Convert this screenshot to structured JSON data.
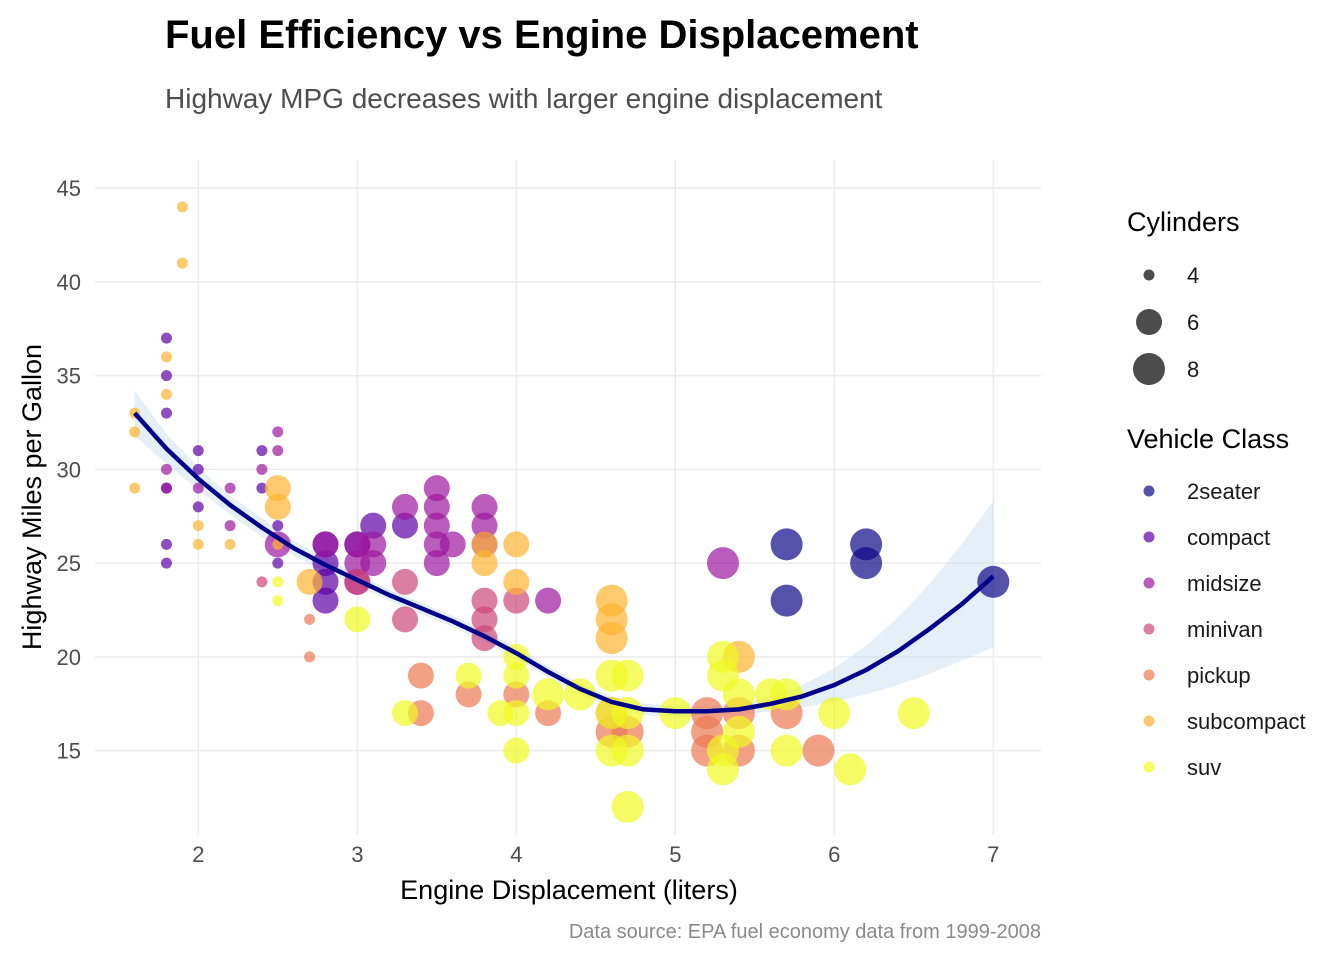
{
  "chart_data": {
    "type": "scatter",
    "title": "Fuel Efficiency vs Engine Displacement",
    "subtitle": "Highway MPG decreases with larger engine displacement",
    "xlabel": "Engine Displacement (liters)",
    "ylabel": "Highway Miles per Gallon",
    "caption": "Data source: EPA fuel economy data from 1999-2008",
    "xlim": [
      1.35,
      7.3
    ],
    "ylim": [
      10.5,
      46.5
    ],
    "xticks": [
      2,
      3,
      4,
      5,
      6,
      7
    ],
    "yticks": [
      15,
      20,
      25,
      30,
      35,
      40,
      45
    ],
    "grid": true,
    "size_legend": {
      "title": "Cylinders",
      "entries": [
        4,
        6,
        8
      ]
    },
    "color_legend": {
      "title": "Vehicle Class",
      "entries": [
        "2seater",
        "compact",
        "midsize",
        "minivan",
        "pickup",
        "subcompact",
        "suv"
      ]
    },
    "class_colors": {
      "2seater": "#0d0887",
      "compact": "#5c01a6",
      "midsize": "#9c179e",
      "minivan": "#cc4778",
      "pickup": "#ed7953",
      "subcompact": "#fdb42f",
      "suv": "#f0f921"
    },
    "point_opacity": 0.7,
    "points": [
      {
        "x": 5.7,
        "y": 26,
        "cyl": 8,
        "cls": "2seater"
      },
      {
        "x": 5.7,
        "y": 23,
        "cyl": 8,
        "cls": "2seater"
      },
      {
        "x": 6.2,
        "y": 26,
        "cyl": 8,
        "cls": "2seater"
      },
      {
        "x": 6.2,
        "y": 25,
        "cyl": 8,
        "cls": "2seater"
      },
      {
        "x": 7.0,
        "y": 24,
        "cyl": 8,
        "cls": "2seater"
      },
      {
        "x": 1.8,
        "y": 37,
        "cyl": 4,
        "cls": "compact"
      },
      {
        "x": 1.8,
        "y": 35,
        "cyl": 4,
        "cls": "compact"
      },
      {
        "x": 1.8,
        "y": 33,
        "cyl": 4,
        "cls": "compact"
      },
      {
        "x": 1.8,
        "y": 29,
        "cyl": 4,
        "cls": "compact"
      },
      {
        "x": 1.8,
        "y": 26,
        "cyl": 4,
        "cls": "compact"
      },
      {
        "x": 1.8,
        "y": 25,
        "cyl": 4,
        "cls": "compact"
      },
      {
        "x": 2.0,
        "y": 31,
        "cyl": 4,
        "cls": "compact"
      },
      {
        "x": 2.0,
        "y": 30,
        "cyl": 4,
        "cls": "compact"
      },
      {
        "x": 2.0,
        "y": 28,
        "cyl": 4,
        "cls": "compact"
      },
      {
        "x": 2.4,
        "y": 31,
        "cyl": 4,
        "cls": "compact"
      },
      {
        "x": 2.4,
        "y": 29,
        "cyl": 4,
        "cls": "compact"
      },
      {
        "x": 2.5,
        "y": 27,
        "cyl": 4,
        "cls": "compact"
      },
      {
        "x": 2.5,
        "y": 25,
        "cyl": 4,
        "cls": "compact"
      },
      {
        "x": 2.8,
        "y": 26,
        "cyl": 6,
        "cls": "compact"
      },
      {
        "x": 2.8,
        "y": 25,
        "cyl": 6,
        "cls": "compact"
      },
      {
        "x": 2.8,
        "y": 24,
        "cyl": 6,
        "cls": "compact"
      },
      {
        "x": 2.8,
        "y": 23,
        "cyl": 6,
        "cls": "compact"
      },
      {
        "x": 3.0,
        "y": 26,
        "cyl": 6,
        "cls": "compact"
      },
      {
        "x": 3.1,
        "y": 27,
        "cyl": 6,
        "cls": "compact"
      },
      {
        "x": 3.3,
        "y": 27,
        "cyl": 6,
        "cls": "compact"
      },
      {
        "x": 1.8,
        "y": 30,
        "cyl": 4,
        "cls": "midsize"
      },
      {
        "x": 1.8,
        "y": 29,
        "cyl": 4,
        "cls": "midsize"
      },
      {
        "x": 2.0,
        "y": 29,
        "cyl": 4,
        "cls": "midsize"
      },
      {
        "x": 2.2,
        "y": 29,
        "cyl": 4,
        "cls": "midsize"
      },
      {
        "x": 2.2,
        "y": 27,
        "cyl": 4,
        "cls": "midsize"
      },
      {
        "x": 2.4,
        "y": 30,
        "cyl": 4,
        "cls": "midsize"
      },
      {
        "x": 2.5,
        "y": 32,
        "cyl": 4,
        "cls": "midsize"
      },
      {
        "x": 2.5,
        "y": 31,
        "cyl": 4,
        "cls": "midsize"
      },
      {
        "x": 2.5,
        "y": 26,
        "cyl": 6,
        "cls": "midsize"
      },
      {
        "x": 2.8,
        "y": 26,
        "cyl": 6,
        "cls": "midsize"
      },
      {
        "x": 3.0,
        "y": 26,
        "cyl": 6,
        "cls": "midsize"
      },
      {
        "x": 3.0,
        "y": 25,
        "cyl": 6,
        "cls": "midsize"
      },
      {
        "x": 3.0,
        "y": 24,
        "cyl": 6,
        "cls": "midsize"
      },
      {
        "x": 3.1,
        "y": 26,
        "cyl": 6,
        "cls": "midsize"
      },
      {
        "x": 3.1,
        "y": 25,
        "cyl": 6,
        "cls": "midsize"
      },
      {
        "x": 3.3,
        "y": 28,
        "cyl": 6,
        "cls": "midsize"
      },
      {
        "x": 3.5,
        "y": 29,
        "cyl": 6,
        "cls": "midsize"
      },
      {
        "x": 3.5,
        "y": 28,
        "cyl": 6,
        "cls": "midsize"
      },
      {
        "x": 3.5,
        "y": 27,
        "cyl": 6,
        "cls": "midsize"
      },
      {
        "x": 3.5,
        "y": 26,
        "cyl": 6,
        "cls": "midsize"
      },
      {
        "x": 3.5,
        "y": 25,
        "cyl": 6,
        "cls": "midsize"
      },
      {
        "x": 3.6,
        "y": 26,
        "cyl": 6,
        "cls": "midsize"
      },
      {
        "x": 3.8,
        "y": 28,
        "cyl": 6,
        "cls": "midsize"
      },
      {
        "x": 3.8,
        "y": 27,
        "cyl": 6,
        "cls": "midsize"
      },
      {
        "x": 3.8,
        "y": 26,
        "cyl": 6,
        "cls": "midsize"
      },
      {
        "x": 4.2,
        "y": 23,
        "cyl": 6,
        "cls": "midsize"
      },
      {
        "x": 5.3,
        "y": 25,
        "cyl": 8,
        "cls": "midsize"
      },
      {
        "x": 2.4,
        "y": 24,
        "cyl": 4,
        "cls": "minivan"
      },
      {
        "x": 3.0,
        "y": 24,
        "cyl": 6,
        "cls": "minivan"
      },
      {
        "x": 3.3,
        "y": 24,
        "cyl": 6,
        "cls": "minivan"
      },
      {
        "x": 3.3,
        "y": 22,
        "cyl": 6,
        "cls": "minivan"
      },
      {
        "x": 3.8,
        "y": 23,
        "cyl": 6,
        "cls": "minivan"
      },
      {
        "x": 3.8,
        "y": 22,
        "cyl": 6,
        "cls": "minivan"
      },
      {
        "x": 3.8,
        "y": 21,
        "cyl": 6,
        "cls": "minivan"
      },
      {
        "x": 4.0,
        "y": 23,
        "cyl": 6,
        "cls": "minivan"
      },
      {
        "x": 2.7,
        "y": 22,
        "cyl": 4,
        "cls": "pickup"
      },
      {
        "x": 2.7,
        "y": 20,
        "cyl": 4,
        "cls": "pickup"
      },
      {
        "x": 3.4,
        "y": 19,
        "cyl": 6,
        "cls": "pickup"
      },
      {
        "x": 3.4,
        "y": 17,
        "cyl": 6,
        "cls": "pickup"
      },
      {
        "x": 3.7,
        "y": 18,
        "cyl": 6,
        "cls": "pickup"
      },
      {
        "x": 4.0,
        "y": 18,
        "cyl": 6,
        "cls": "pickup"
      },
      {
        "x": 4.2,
        "y": 17,
        "cyl": 6,
        "cls": "pickup"
      },
      {
        "x": 4.6,
        "y": 17,
        "cyl": 8,
        "cls": "pickup"
      },
      {
        "x": 4.6,
        "y": 16,
        "cyl": 8,
        "cls": "pickup"
      },
      {
        "x": 4.7,
        "y": 16,
        "cyl": 8,
        "cls": "pickup"
      },
      {
        "x": 5.2,
        "y": 17,
        "cyl": 8,
        "cls": "pickup"
      },
      {
        "x": 5.2,
        "y": 16,
        "cyl": 8,
        "cls": "pickup"
      },
      {
        "x": 5.2,
        "y": 15,
        "cyl": 8,
        "cls": "pickup"
      },
      {
        "x": 5.4,
        "y": 17,
        "cyl": 8,
        "cls": "pickup"
      },
      {
        "x": 5.4,
        "y": 15,
        "cyl": 8,
        "cls": "pickup"
      },
      {
        "x": 5.7,
        "y": 17,
        "cyl": 8,
        "cls": "pickup"
      },
      {
        "x": 5.9,
        "y": 15,
        "cyl": 8,
        "cls": "pickup"
      },
      {
        "x": 1.6,
        "y": 33,
        "cyl": 4,
        "cls": "subcompact"
      },
      {
        "x": 1.6,
        "y": 32,
        "cyl": 4,
        "cls": "subcompact"
      },
      {
        "x": 1.6,
        "y": 29,
        "cyl": 4,
        "cls": "subcompact"
      },
      {
        "x": 1.8,
        "y": 36,
        "cyl": 4,
        "cls": "subcompact"
      },
      {
        "x": 1.8,
        "y": 34,
        "cyl": 4,
        "cls": "subcompact"
      },
      {
        "x": 1.9,
        "y": 44,
        "cyl": 4,
        "cls": "subcompact"
      },
      {
        "x": 1.9,
        "y": 41,
        "cyl": 4,
        "cls": "subcompact"
      },
      {
        "x": 2.0,
        "y": 27,
        "cyl": 4,
        "cls": "subcompact"
      },
      {
        "x": 2.0,
        "y": 26,
        "cyl": 4,
        "cls": "subcompact"
      },
      {
        "x": 2.2,
        "y": 26,
        "cyl": 4,
        "cls": "subcompact"
      },
      {
        "x": 2.5,
        "y": 29,
        "cyl": 6,
        "cls": "subcompact"
      },
      {
        "x": 2.5,
        "y": 28,
        "cyl": 6,
        "cls": "subcompact"
      },
      {
        "x": 2.5,
        "y": 26,
        "cyl": 4,
        "cls": "subcompact"
      },
      {
        "x": 2.7,
        "y": 24,
        "cyl": 6,
        "cls": "subcompact"
      },
      {
        "x": 3.8,
        "y": 26,
        "cyl": 6,
        "cls": "subcompact"
      },
      {
        "x": 3.8,
        "y": 25,
        "cyl": 6,
        "cls": "subcompact"
      },
      {
        "x": 4.0,
        "y": 26,
        "cyl": 6,
        "cls": "subcompact"
      },
      {
        "x": 4.0,
        "y": 24,
        "cyl": 6,
        "cls": "subcompact"
      },
      {
        "x": 4.6,
        "y": 23,
        "cyl": 8,
        "cls": "subcompact"
      },
      {
        "x": 4.6,
        "y": 22,
        "cyl": 8,
        "cls": "subcompact"
      },
      {
        "x": 4.6,
        "y": 21,
        "cyl": 8,
        "cls": "subcompact"
      },
      {
        "x": 5.4,
        "y": 20,
        "cyl": 8,
        "cls": "subcompact"
      },
      {
        "x": 2.5,
        "y": 24,
        "cyl": 4,
        "cls": "suv"
      },
      {
        "x": 2.5,
        "y": 23,
        "cyl": 4,
        "cls": "suv"
      },
      {
        "x": 3.0,
        "y": 22,
        "cyl": 6,
        "cls": "suv"
      },
      {
        "x": 3.3,
        "y": 17,
        "cyl": 6,
        "cls": "suv"
      },
      {
        "x": 3.7,
        "y": 19,
        "cyl": 6,
        "cls": "suv"
      },
      {
        "x": 3.9,
        "y": 17,
        "cyl": 6,
        "cls": "suv"
      },
      {
        "x": 4.0,
        "y": 20,
        "cyl": 6,
        "cls": "suv"
      },
      {
        "x": 4.0,
        "y": 19,
        "cyl": 6,
        "cls": "suv"
      },
      {
        "x": 4.0,
        "y": 17,
        "cyl": 6,
        "cls": "suv"
      },
      {
        "x": 4.0,
        "y": 15,
        "cyl": 6,
        "cls": "suv"
      },
      {
        "x": 4.2,
        "y": 18,
        "cyl": 8,
        "cls": "suv"
      },
      {
        "x": 4.4,
        "y": 18,
        "cyl": 8,
        "cls": "suv"
      },
      {
        "x": 4.6,
        "y": 19,
        "cyl": 8,
        "cls": "suv"
      },
      {
        "x": 4.6,
        "y": 17,
        "cyl": 8,
        "cls": "suv"
      },
      {
        "x": 4.6,
        "y": 15,
        "cyl": 8,
        "cls": "suv"
      },
      {
        "x": 4.7,
        "y": 19,
        "cyl": 8,
        "cls": "suv"
      },
      {
        "x": 4.7,
        "y": 17,
        "cyl": 8,
        "cls": "suv"
      },
      {
        "x": 4.7,
        "y": 15,
        "cyl": 8,
        "cls": "suv"
      },
      {
        "x": 4.7,
        "y": 12,
        "cyl": 8,
        "cls": "suv"
      },
      {
        "x": 5.0,
        "y": 17,
        "cyl": 8,
        "cls": "suv"
      },
      {
        "x": 5.3,
        "y": 20,
        "cyl": 8,
        "cls": "suv"
      },
      {
        "x": 5.3,
        "y": 19,
        "cyl": 8,
        "cls": "suv"
      },
      {
        "x": 5.3,
        "y": 15,
        "cyl": 8,
        "cls": "suv"
      },
      {
        "x": 5.3,
        "y": 14,
        "cyl": 8,
        "cls": "suv"
      },
      {
        "x": 5.4,
        "y": 18,
        "cyl": 8,
        "cls": "suv"
      },
      {
        "x": 5.4,
        "y": 16,
        "cyl": 8,
        "cls": "suv"
      },
      {
        "x": 5.6,
        "y": 18,
        "cyl": 8,
        "cls": "suv"
      },
      {
        "x": 5.7,
        "y": 18,
        "cyl": 8,
        "cls": "suv"
      },
      {
        "x": 5.7,
        "y": 15,
        "cyl": 8,
        "cls": "suv"
      },
      {
        "x": 6.0,
        "y": 17,
        "cyl": 8,
        "cls": "suv"
      },
      {
        "x": 6.1,
        "y": 14,
        "cyl": 8,
        "cls": "suv"
      },
      {
        "x": 6.5,
        "y": 17,
        "cyl": 8,
        "cls": "suv"
      }
    ],
    "smooth": {
      "method": "loess",
      "color": "#00008b",
      "ribbon_color": "#c6dbef",
      "x": [
        1.6,
        1.8,
        2.0,
        2.2,
        2.4,
        2.6,
        2.8,
        3.0,
        3.2,
        3.4,
        3.6,
        3.8,
        4.0,
        4.2,
        4.4,
        4.6,
        4.8,
        5.0,
        5.2,
        5.4,
        5.6,
        5.8,
        6.0,
        6.2,
        6.4,
        6.6,
        6.8,
        7.0
      ],
      "y": [
        33.0,
        31.1,
        29.5,
        28.1,
        26.9,
        25.8,
        24.9,
        24.1,
        23.3,
        22.6,
        21.9,
        21.1,
        20.2,
        19.2,
        18.3,
        17.6,
        17.2,
        17.1,
        17.1,
        17.2,
        17.5,
        17.9,
        18.5,
        19.3,
        20.3,
        21.5,
        22.8,
        24.3
      ],
      "lower": [
        31.8,
        30.3,
        28.9,
        27.6,
        26.4,
        25.4,
        24.5,
        23.8,
        23.0,
        22.3,
        21.6,
        20.8,
        19.9,
        18.9,
        18.0,
        17.3,
        16.9,
        16.8,
        16.8,
        16.9,
        17.1,
        17.3,
        17.6,
        18.0,
        18.5,
        19.1,
        19.8,
        20.5
      ],
      "upper": [
        34.2,
        31.9,
        30.1,
        28.6,
        27.4,
        26.2,
        25.3,
        24.4,
        23.6,
        22.9,
        22.2,
        21.4,
        20.5,
        19.5,
        18.6,
        17.9,
        17.5,
        17.4,
        17.4,
        17.5,
        17.9,
        18.5,
        19.4,
        20.6,
        22.1,
        23.9,
        26.0,
        28.3
      ]
    }
  }
}
